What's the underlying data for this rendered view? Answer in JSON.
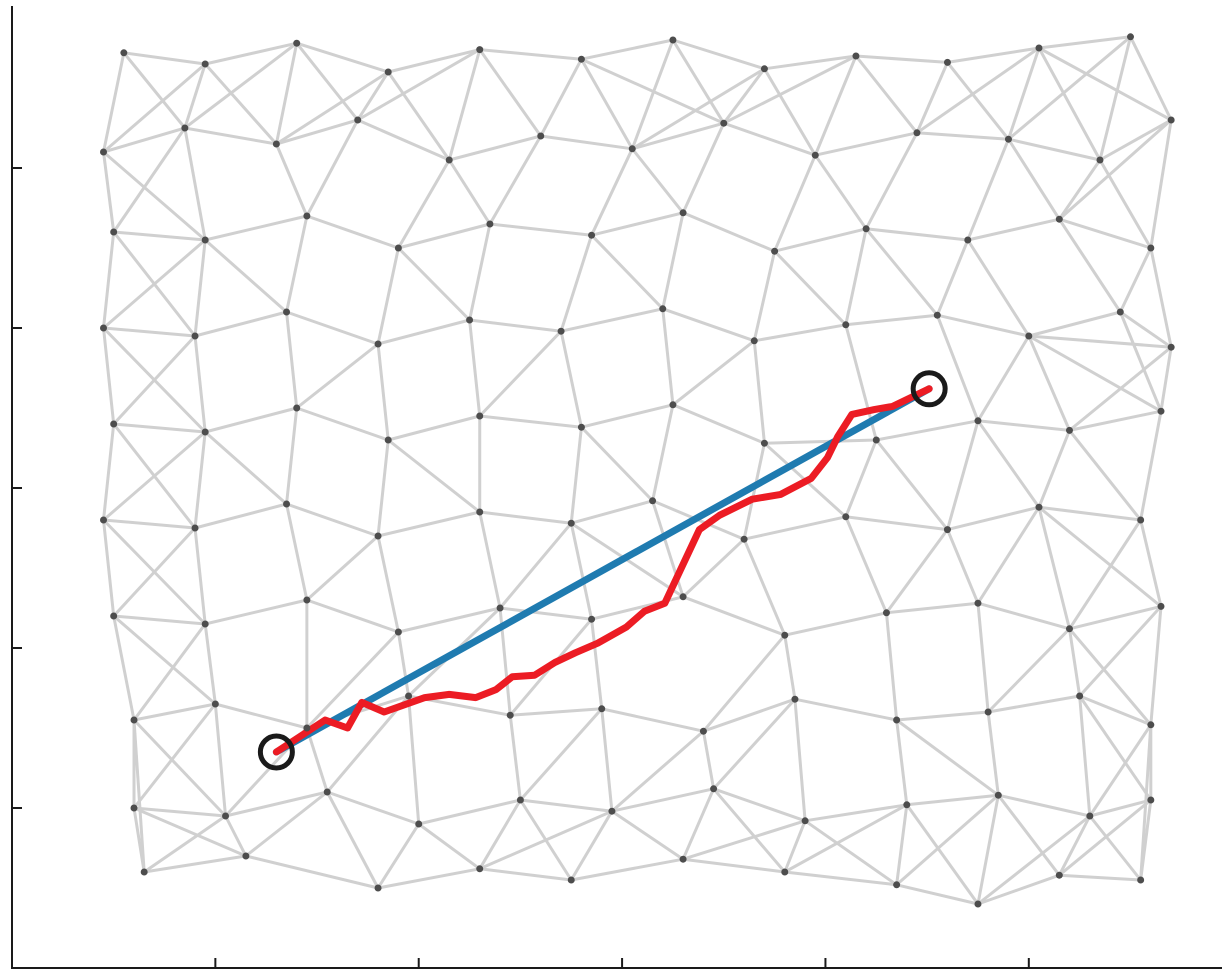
{
  "chart_data": {
    "type": "network",
    "xlim": [
      0,
      5.95
    ],
    "ylim": [
      0,
      6
    ],
    "xticks": [
      1,
      2,
      3,
      4,
      5
    ],
    "yticks": [
      1,
      2,
      3,
      4,
      5
    ],
    "edge_color": "#d0d0d0",
    "nodes": {
      "color": "#4d4d4d",
      "x": [
        0.55,
        0.95,
        1.4,
        1.85,
        2.3,
        2.8,
        3.25,
        3.7,
        4.15,
        4.6,
        5.05,
        5.5,
        0.45,
        0.85,
        1.3,
        1.7,
        2.15,
        2.6,
        3.05,
        3.5,
        3.95,
        4.45,
        4.9,
        5.35,
        5.7,
        0.5,
        0.95,
        1.45,
        1.9,
        2.35,
        2.85,
        3.3,
        3.75,
        4.2,
        4.7,
        5.15,
        5.6,
        0.45,
        0.9,
        1.35,
        1.8,
        2.25,
        2.7,
        3.2,
        3.65,
        4.1,
        4.55,
        5.0,
        5.45,
        5.7,
        0.5,
        0.95,
        1.4,
        1.85,
        2.3,
        2.8,
        3.25,
        3.7,
        4.25,
        4.75,
        5.2,
        5.65,
        0.45,
        0.9,
        1.35,
        1.8,
        2.3,
        2.75,
        3.15,
        3.6,
        4.1,
        4.6,
        5.05,
        5.55,
        0.5,
        0.95,
        1.45,
        1.9,
        2.4,
        2.85,
        3.3,
        3.8,
        4.3,
        4.75,
        5.2,
        5.65,
        0.6,
        1.0,
        1.45,
        1.95,
        2.45,
        2.9,
        3.4,
        3.85,
        4.35,
        4.8,
        5.25,
        5.6,
        0.6,
        1.05,
        1.55,
        2.0,
        2.5,
        2.95,
        3.45,
        3.9,
        4.4,
        4.85,
        5.3,
        5.6,
        0.65,
        1.15,
        1.8,
        2.3,
        2.75,
        3.3,
        3.8,
        4.35,
        4.75,
        5.15,
        5.55
      ],
      "y": [
        5.72,
        5.65,
        5.78,
        5.6,
        5.74,
        5.68,
        5.8,
        5.62,
        5.7,
        5.66,
        5.75,
        5.82,
        5.1,
        5.25,
        5.15,
        5.3,
        5.05,
        5.2,
        5.12,
        5.28,
        5.08,
        5.22,
        5.18,
        5.05,
        5.3,
        4.6,
        4.55,
        4.7,
        4.5,
        4.65,
        4.58,
        4.72,
        4.48,
        4.62,
        4.55,
        4.68,
        4.5,
        4.0,
        3.95,
        4.1,
        3.9,
        4.05,
        3.98,
        4.12,
        3.92,
        4.02,
        4.08,
        3.95,
        4.1,
        3.88,
        3.4,
        3.35,
        3.5,
        3.3,
        3.45,
        3.38,
        3.52,
        3.28,
        3.3,
        3.42,
        3.36,
        3.48,
        2.8,
        2.75,
        2.9,
        2.7,
        2.85,
        2.78,
        2.92,
        2.68,
        2.82,
        2.74,
        2.88,
        2.8,
        2.2,
        2.15,
        2.3,
        2.1,
        2.25,
        2.18,
        2.32,
        2.08,
        2.22,
        2.28,
        2.12,
        2.26,
        1.55,
        1.65,
        1.5,
        1.7,
        1.58,
        1.62,
        1.48,
        1.68,
        1.55,
        1.6,
        1.7,
        1.52,
        1.0,
        0.95,
        1.1,
        0.9,
        1.05,
        0.98,
        1.12,
        0.92,
        1.02,
        1.08,
        0.95,
        1.05,
        0.6,
        0.7,
        0.5,
        0.62,
        0.55,
        0.68,
        0.6,
        0.52,
        0.4,
        0.58,
        0.55
      ]
    },
    "paths": [
      {
        "color": "#1f7bb0",
        "x": [
          1.3,
          4.51
        ],
        "y": [
          1.35,
          3.62
        ]
      },
      {
        "color": "#ec1c24",
        "x": [
          1.3,
          1.54,
          1.65,
          1.72,
          1.83,
          2.03,
          2.15,
          2.28,
          2.38,
          2.46,
          2.57,
          2.67,
          2.77,
          2.88,
          3.02,
          3.11,
          3.21,
          3.38,
          3.48,
          3.64,
          3.78,
          3.93,
          4.01,
          4.06,
          4.13,
          4.24,
          4.33,
          4.51
        ],
        "y": [
          1.35,
          1.55,
          1.5,
          1.66,
          1.6,
          1.69,
          1.71,
          1.69,
          1.74,
          1.82,
          1.83,
          1.91,
          1.97,
          2.03,
          2.13,
          2.23,
          2.28,
          2.74,
          2.83,
          2.93,
          2.96,
          3.06,
          3.19,
          3.32,
          3.46,
          3.49,
          3.51,
          3.62
        ]
      }
    ],
    "endpoint_color": "#1a1a1a"
  }
}
